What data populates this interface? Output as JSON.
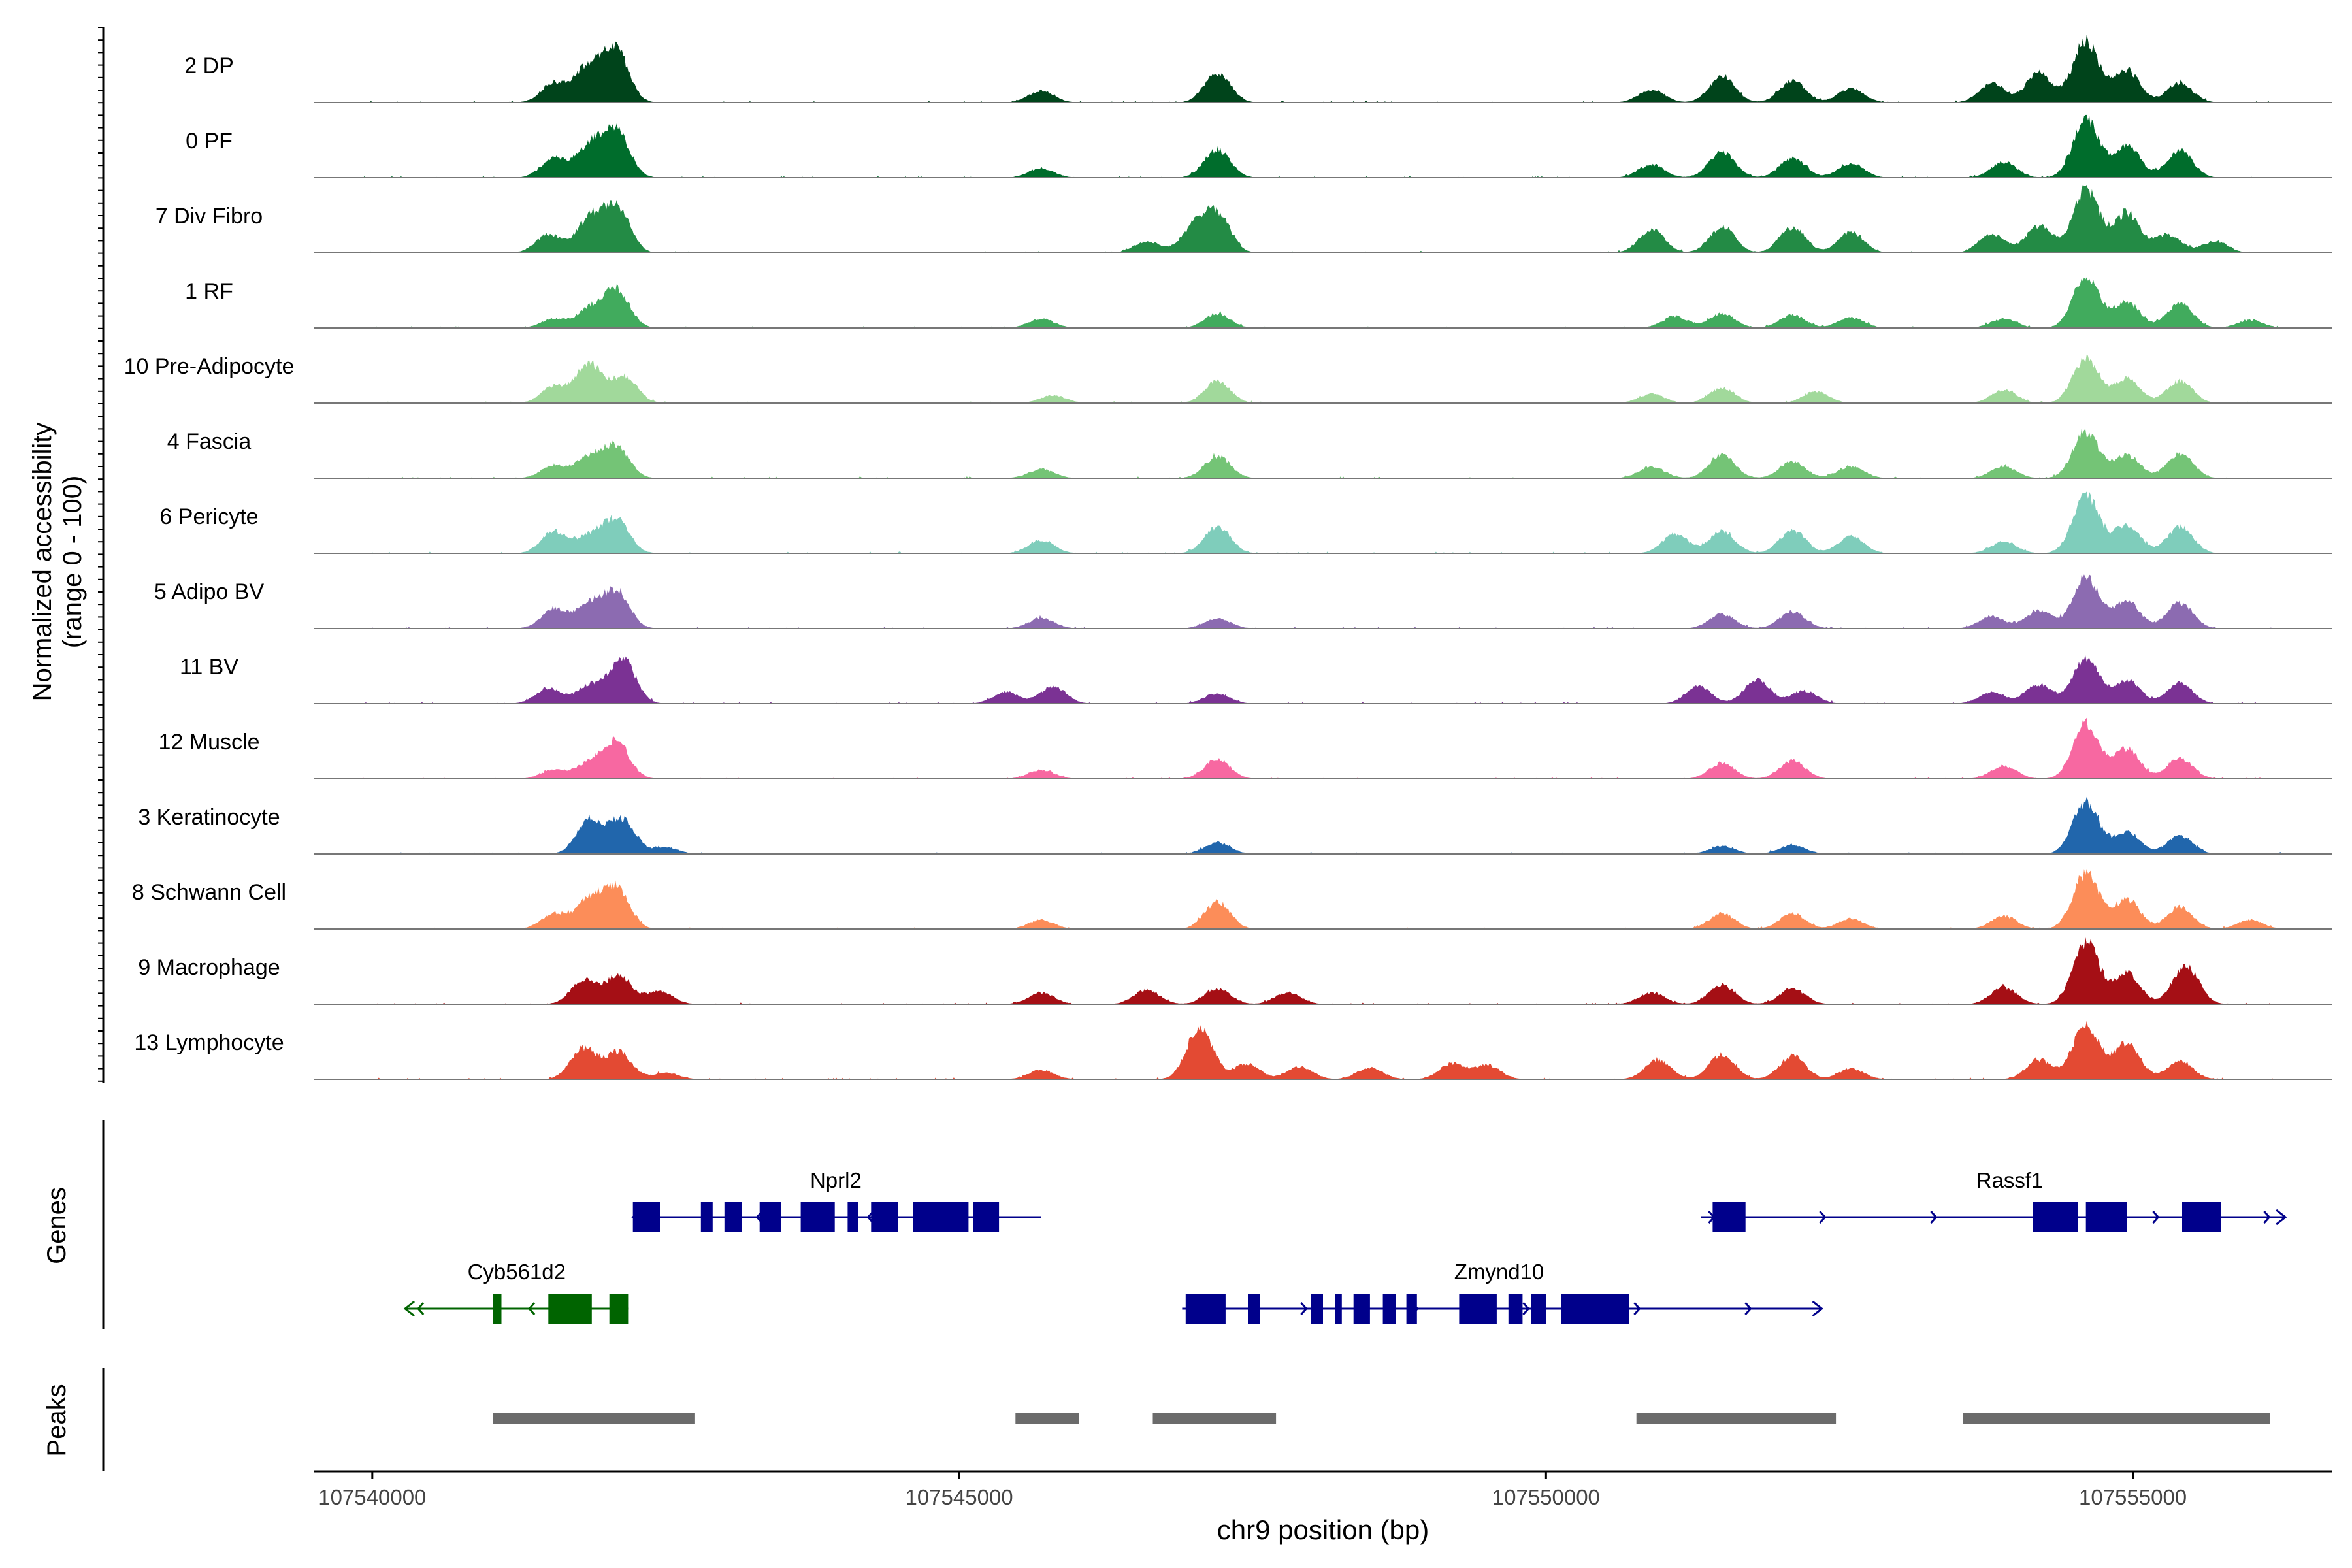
{
  "chart_data": {
    "type": "area",
    "title": "",
    "region": "chr9",
    "xlabel": "chr9 position (bp)",
    "ylabel_line1": "Normalized accessibility",
    "ylabel_line2": "(range 0 - 100)",
    "xlim": [
      107539500,
      107556700
    ],
    "ylim": [
      0,
      100
    ],
    "x_ticks": [
      {
        "value": 107540000,
        "label": "107540000"
      },
      {
        "value": 107545000,
        "label": "107545000"
      },
      {
        "value": 107550000,
        "label": "107550000"
      },
      {
        "value": 107555000,
        "label": "107555000"
      }
    ],
    "track_labels": {
      "genes": "Genes",
      "peaks": "Peaks"
    },
    "tracks": [
      {
        "name": "2 DP",
        "color": "#00441b",
        "peaks": [
          [
            107541550,
            0.3
          ],
          [
            107541830,
            0.52
          ],
          [
            107542070,
            0.82
          ],
          [
            107545700,
            0.18
          ],
          [
            107547200,
            0.46
          ],
          [
            107550900,
            0.2
          ],
          [
            107551500,
            0.4
          ],
          [
            107552100,
            0.34
          ],
          [
            107552600,
            0.22
          ],
          [
            107553800,
            0.3
          ],
          [
            107554200,
            0.46
          ],
          [
            107554600,
            0.95
          ],
          [
            107554950,
            0.5
          ],
          [
            107555400,
            0.3
          ]
        ]
      },
      {
        "name": "0 PF",
        "color": "#006d2c",
        "peaks": [
          [
            107541550,
            0.3
          ],
          [
            107541850,
            0.48
          ],
          [
            107542080,
            0.72
          ],
          [
            107545700,
            0.14
          ],
          [
            107547200,
            0.44
          ],
          [
            107550900,
            0.2
          ],
          [
            107551500,
            0.4
          ],
          [
            107552100,
            0.3
          ],
          [
            107552600,
            0.22
          ],
          [
            107553900,
            0.24
          ],
          [
            107554600,
            0.9
          ],
          [
            107554950,
            0.5
          ],
          [
            107555400,
            0.42
          ]
        ]
      },
      {
        "name": "7 Div Fibro",
        "color": "#238b45",
        "peaks": [
          [
            107541500,
            0.28
          ],
          [
            107541850,
            0.52
          ],
          [
            107542080,
            0.72
          ],
          [
            107546600,
            0.18
          ],
          [
            107547000,
            0.38
          ],
          [
            107547200,
            0.58
          ],
          [
            107550900,
            0.36
          ],
          [
            107551500,
            0.4
          ],
          [
            107552100,
            0.4
          ],
          [
            107552600,
            0.32
          ],
          [
            107553800,
            0.3
          ],
          [
            107554200,
            0.42
          ],
          [
            107554600,
            1.0
          ],
          [
            107554950,
            0.62
          ],
          [
            107555300,
            0.28
          ],
          [
            107555700,
            0.18
          ]
        ]
      },
      {
        "name": "1 RF",
        "color": "#41ab5d",
        "peaks": [
          [
            107541550,
            0.14
          ],
          [
            107541850,
            0.28
          ],
          [
            107542080,
            0.58
          ],
          [
            107545700,
            0.14
          ],
          [
            107547200,
            0.22
          ],
          [
            107551100,
            0.18
          ],
          [
            107551500,
            0.22
          ],
          [
            107552100,
            0.2
          ],
          [
            107552600,
            0.16
          ],
          [
            107553900,
            0.14
          ],
          [
            107554600,
            0.8
          ],
          [
            107554950,
            0.4
          ],
          [
            107555400,
            0.38
          ],
          [
            107556000,
            0.12
          ]
        ]
      },
      {
        "name": "10 Pre-Adipocyte",
        "color": "#a1d99b",
        "peaks": [
          [
            107541550,
            0.26
          ],
          [
            107541850,
            0.62
          ],
          [
            107542150,
            0.4
          ],
          [
            107545800,
            0.12
          ],
          [
            107547200,
            0.34
          ],
          [
            107550900,
            0.14
          ],
          [
            107551500,
            0.24
          ],
          [
            107552300,
            0.18
          ],
          [
            107553900,
            0.2
          ],
          [
            107554600,
            0.7
          ],
          [
            107554950,
            0.38
          ],
          [
            107555400,
            0.34
          ]
        ]
      },
      {
        "name": "4 Fascia",
        "color": "#74c476",
        "peaks": [
          [
            107541550,
            0.2
          ],
          [
            107541850,
            0.32
          ],
          [
            107542080,
            0.48
          ],
          [
            107545700,
            0.14
          ],
          [
            107547200,
            0.34
          ],
          [
            107550900,
            0.18
          ],
          [
            107551500,
            0.36
          ],
          [
            107552100,
            0.26
          ],
          [
            107552600,
            0.18
          ],
          [
            107553900,
            0.18
          ],
          [
            107554600,
            0.72
          ],
          [
            107554950,
            0.36
          ],
          [
            107555400,
            0.38
          ]
        ]
      },
      {
        "name": "6 Pericyte",
        "color": "#7fcdbb",
        "peaks": [
          [
            107541550,
            0.34
          ],
          [
            107541850,
            0.26
          ],
          [
            107542080,
            0.52
          ],
          [
            107545700,
            0.2
          ],
          [
            107547200,
            0.42
          ],
          [
            107551100,
            0.3
          ],
          [
            107551500,
            0.34
          ],
          [
            107552100,
            0.36
          ],
          [
            107552600,
            0.26
          ],
          [
            107553900,
            0.18
          ],
          [
            107554600,
            0.9
          ],
          [
            107554950,
            0.44
          ],
          [
            107555400,
            0.42
          ]
        ]
      },
      {
        "name": "5 Adipo BV",
        "color": "#8c6bb1",
        "peaks": [
          [
            107541550,
            0.3
          ],
          [
            107541850,
            0.36
          ],
          [
            107542080,
            0.56
          ],
          [
            107545700,
            0.16
          ],
          [
            107547200,
            0.16
          ],
          [
            107551500,
            0.22
          ],
          [
            107552100,
            0.26
          ],
          [
            107553800,
            0.18
          ],
          [
            107554200,
            0.28
          ],
          [
            107554600,
            0.8
          ],
          [
            107554950,
            0.42
          ],
          [
            107555400,
            0.4
          ]
        ]
      },
      {
        "name": "11 BV",
        "color": "#7b3294",
        "peaks": [
          [
            107541500,
            0.24
          ],
          [
            107541850,
            0.28
          ],
          [
            107542130,
            0.7
          ],
          [
            107545400,
            0.18
          ],
          [
            107545800,
            0.26
          ],
          [
            107547200,
            0.16
          ],
          [
            107551300,
            0.26
          ],
          [
            107551800,
            0.36
          ],
          [
            107552200,
            0.2
          ],
          [
            107553800,
            0.18
          ],
          [
            107554200,
            0.3
          ],
          [
            107554600,
            0.7
          ],
          [
            107554950,
            0.36
          ],
          [
            107555400,
            0.32
          ]
        ]
      },
      {
        "name": "12 Muscle",
        "color": "#f768a1",
        "peaks": [
          [
            107541550,
            0.14
          ],
          [
            107541850,
            0.24
          ],
          [
            107542080,
            0.56
          ],
          [
            107545700,
            0.14
          ],
          [
            107547200,
            0.3
          ],
          [
            107551500,
            0.24
          ],
          [
            107552100,
            0.28
          ],
          [
            107553900,
            0.2
          ],
          [
            107554600,
            0.86
          ],
          [
            107554950,
            0.46
          ],
          [
            107555400,
            0.32
          ]
        ]
      },
      {
        "name": "3 Keratinocyte",
        "color": "#2166ac",
        "peaks": [
          [
            107541850,
            0.52
          ],
          [
            107542130,
            0.54
          ],
          [
            107542500,
            0.1
          ],
          [
            107547200,
            0.18
          ],
          [
            107551500,
            0.12
          ],
          [
            107552100,
            0.14
          ],
          [
            107554600,
            0.8
          ],
          [
            107554950,
            0.34
          ],
          [
            107555400,
            0.28
          ]
        ]
      },
      {
        "name": "8 Schwann Cell",
        "color": "#fc8d59",
        "peaks": [
          [
            107541550,
            0.24
          ],
          [
            107541850,
            0.44
          ],
          [
            107542080,
            0.64
          ],
          [
            107545700,
            0.14
          ],
          [
            107547200,
            0.42
          ],
          [
            107551500,
            0.24
          ],
          [
            107552100,
            0.24
          ],
          [
            107552600,
            0.16
          ],
          [
            107553900,
            0.2
          ],
          [
            107554600,
            0.86
          ],
          [
            107554950,
            0.46
          ],
          [
            107555400,
            0.34
          ],
          [
            107556000,
            0.14
          ]
        ]
      },
      {
        "name": "9 Macrophage",
        "color": "#a50f15",
        "peaks": [
          [
            107541800,
            0.36
          ],
          [
            107542100,
            0.44
          ],
          [
            107542450,
            0.2
          ],
          [
            107545700,
            0.18
          ],
          [
            107546600,
            0.22
          ],
          [
            107547200,
            0.24
          ],
          [
            107547800,
            0.18
          ],
          [
            107550900,
            0.18
          ],
          [
            107551500,
            0.3
          ],
          [
            107552100,
            0.24
          ],
          [
            107553900,
            0.26
          ],
          [
            107554600,
            0.96
          ],
          [
            107554950,
            0.48
          ],
          [
            107555450,
            0.6
          ]
        ]
      },
      {
        "name": "13 Lymphocyte",
        "color": "#e34a33",
        "peaks": [
          [
            107541800,
            0.48
          ],
          [
            107542100,
            0.42
          ],
          [
            107542500,
            0.1
          ],
          [
            107545700,
            0.14
          ],
          [
            107547050,
            0.8
          ],
          [
            107547450,
            0.24
          ],
          [
            107547900,
            0.2
          ],
          [
            107548500,
            0.18
          ],
          [
            107549200,
            0.24
          ],
          [
            107549500,
            0.22
          ],
          [
            107550950,
            0.3
          ],
          [
            107551500,
            0.38
          ],
          [
            107552100,
            0.36
          ],
          [
            107552600,
            0.16
          ],
          [
            107554200,
            0.3
          ],
          [
            107554600,
            0.86
          ],
          [
            107554950,
            0.56
          ],
          [
            107555400,
            0.28
          ]
        ]
      }
    ],
    "genes": [
      {
        "name": "Nprl2",
        "strand": "-",
        "color": "#00008b",
        "row": 0,
        "start": 107542220,
        "end": 107545700,
        "label_pos": 107543950,
        "exons": [
          [
            107542220,
            107542450
          ],
          [
            107542800,
            107542900
          ],
          [
            107543000,
            107543150
          ],
          [
            107543300,
            107543480
          ],
          [
            107543650,
            107543940
          ],
          [
            107544050,
            107544140
          ],
          [
            107544250,
            107544480
          ],
          [
            107544610,
            107545080
          ],
          [
            107545120,
            107545340
          ]
        ]
      },
      {
        "name": "Rassf1",
        "strand": "+",
        "color": "#00008b",
        "row": 0,
        "start": 107551320,
        "end": 107556300,
        "label_pos": 107553950,
        "exons": [
          [
            107551420,
            107551700
          ],
          [
            107554150,
            107554530
          ],
          [
            107554600,
            107554950
          ],
          [
            107555420,
            107555750
          ]
        ]
      },
      {
        "name": "Cyb561d2",
        "strand": "-",
        "color": "#006400",
        "row": 1,
        "start": 107540280,
        "end": 107542180,
        "label_pos": 107541230,
        "exons": [
          [
            107541030,
            107541100
          ],
          [
            107541500,
            107541870
          ],
          [
            107542020,
            107542180
          ]
        ]
      },
      {
        "name": "Zmynd10",
        "strand": "+",
        "color": "#00008b",
        "row": 1,
        "start": 107546900,
        "end": 107552350,
        "label_pos": 107549600,
        "exons": [
          [
            107546930,
            107547270
          ],
          [
            107547460,
            107547560
          ],
          [
            107548000,
            107548100
          ],
          [
            107548200,
            107548260
          ],
          [
            107548360,
            107548500
          ],
          [
            107548610,
            107548720
          ],
          [
            107548810,
            107548900
          ],
          [
            107549260,
            107549580
          ],
          [
            107549680,
            107549800
          ],
          [
            107549870,
            107550000
          ],
          [
            107550130,
            107550710
          ]
        ]
      }
    ],
    "peaks": [
      [
        107541030,
        107542750
      ],
      [
        107545480,
        107546020
      ],
      [
        107546650,
        107547700
      ],
      [
        107550770,
        107552470
      ],
      [
        107553550,
        107556170
      ]
    ]
  }
}
